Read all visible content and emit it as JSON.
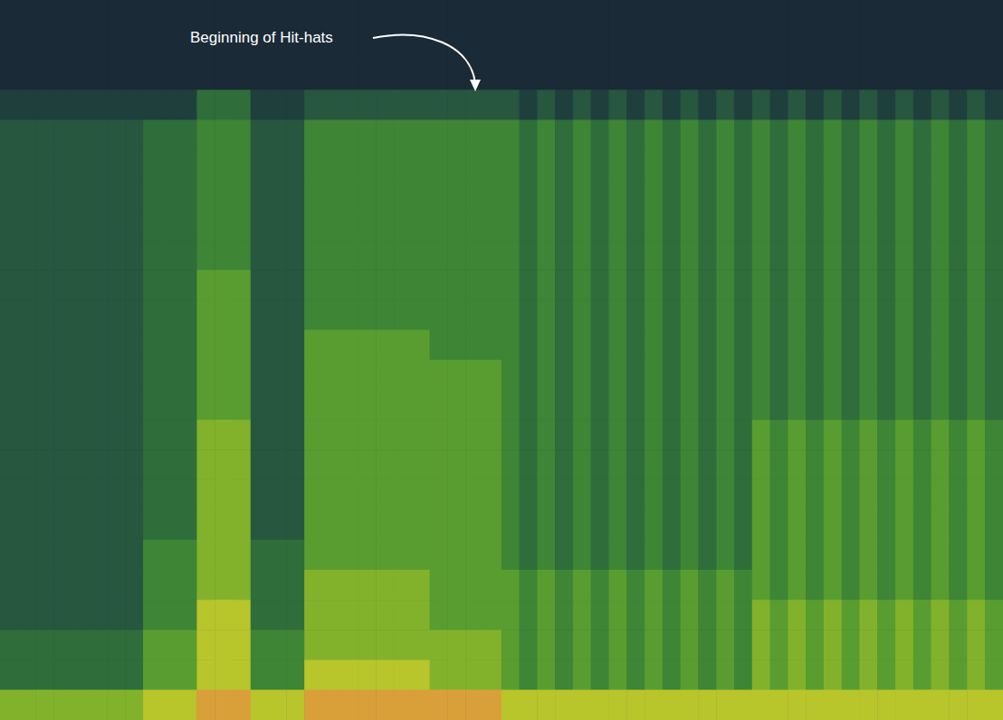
{
  "chart_data": {
    "type": "heatmap",
    "annotation": "Beginning of Hit-hats",
    "tick_labels": false,
    "grid": false,
    "color_range": [
      0,
      9
    ],
    "cells": [
      [
        0,
        0,
        0,
        0,
        0,
        0,
        0,
        0,
        0,
        0,
        0,
        0,
        0,
        0,
        0,
        0,
        0,
        0,
        0,
        0,
        0,
        0,
        0,
        0,
        0,
        0,
        0,
        0,
        0,
        0,
        0,
        0,
        0,
        0,
        0,
        0,
        0,
        0,
        0,
        0,
        0,
        0,
        0,
        0,
        0,
        0,
        0,
        0,
        0,
        0,
        0,
        0,
        0,
        0,
        0,
        0
      ],
      [
        0,
        0,
        0,
        0,
        0,
        0,
        0,
        0,
        0,
        0,
        0,
        0,
        0,
        0,
        0,
        0,
        0,
        0,
        0,
        0,
        0,
        0,
        0,
        0,
        0,
        0,
        0,
        0,
        0,
        0,
        0,
        0,
        0,
        0,
        0,
        0,
        0,
        0,
        0,
        0,
        0,
        0,
        0,
        0,
        0,
        0,
        0,
        0,
        0,
        0,
        0,
        0,
        0,
        0,
        0,
        0
      ],
      [
        0,
        0,
        0,
        0,
        0,
        0,
        0,
        0,
        0,
        0,
        0,
        0,
        0,
        0,
        0,
        0,
        0,
        0,
        0,
        0,
        0,
        0,
        0,
        0,
        0,
        0,
        0,
        0,
        0,
        0,
        0,
        0,
        0,
        0,
        0,
        0,
        0,
        0,
        0,
        0,
        0,
        0,
        0,
        0,
        0,
        0,
        0,
        0,
        0,
        0,
        0,
        0,
        0,
        0,
        0,
        0
      ],
      [
        1,
        1,
        1,
        1,
        1,
        1,
        1,
        1,
        1,
        1,
        1,
        3,
        3,
        3,
        1,
        1,
        1,
        2,
        2,
        2,
        2,
        2,
        2,
        2,
        2,
        2,
        2,
        2,
        2,
        1,
        2,
        1,
        2,
        1,
        2,
        1,
        2,
        1,
        2,
        1,
        2,
        1,
        2,
        1,
        2,
        1,
        2,
        1,
        2,
        1,
        2,
        1,
        2,
        1,
        2,
        1
      ],
      [
        2,
        2,
        2,
        2,
        2,
        2,
        2,
        2,
        3,
        3,
        3,
        4,
        4,
        4,
        2,
        2,
        2,
        4,
        4,
        4,
        4,
        4,
        4,
        4,
        4,
        4,
        4,
        4,
        4,
        3,
        4,
        3,
        4,
        3,
        4,
        3,
        4,
        3,
        4,
        3,
        4,
        3,
        4,
        3,
        4,
        3,
        4,
        3,
        4,
        3,
        4,
        3,
        4,
        3,
        4,
        3
      ],
      [
        2,
        2,
        2,
        2,
        2,
        2,
        2,
        2,
        3,
        3,
        3,
        4,
        4,
        4,
        2,
        2,
        2,
        4,
        4,
        4,
        4,
        4,
        4,
        4,
        4,
        4,
        4,
        4,
        4,
        3,
        4,
        3,
        4,
        3,
        4,
        3,
        4,
        3,
        4,
        3,
        4,
        3,
        4,
        3,
        4,
        3,
        4,
        3,
        4,
        3,
        4,
        3,
        4,
        3,
        4,
        3
      ],
      [
        2,
        2,
        2,
        2,
        2,
        2,
        2,
        2,
        3,
        3,
        3,
        4,
        4,
        4,
        2,
        2,
        2,
        4,
        4,
        4,
        4,
        4,
        4,
        4,
        4,
        4,
        4,
        4,
        4,
        3,
        4,
        3,
        4,
        3,
        4,
        3,
        4,
        3,
        4,
        3,
        4,
        3,
        4,
        3,
        4,
        3,
        4,
        3,
        4,
        3,
        4,
        3,
        4,
        3,
        4,
        3
      ],
      [
        2,
        2,
        2,
        2,
        2,
        2,
        2,
        2,
        3,
        3,
        3,
        4,
        4,
        4,
        2,
        2,
        2,
        4,
        4,
        4,
        4,
        4,
        4,
        4,
        4,
        4,
        4,
        4,
        4,
        3,
        4,
        3,
        4,
        3,
        4,
        3,
        4,
        3,
        4,
        3,
        4,
        3,
        4,
        3,
        4,
        3,
        4,
        3,
        4,
        3,
        4,
        3,
        4,
        3,
        4,
        3
      ],
      [
        2,
        2,
        2,
        2,
        2,
        2,
        2,
        2,
        3,
        3,
        3,
        4,
        4,
        4,
        2,
        2,
        2,
        4,
        4,
        4,
        4,
        4,
        4,
        4,
        4,
        4,
        4,
        4,
        4,
        3,
        4,
        3,
        4,
        3,
        4,
        3,
        4,
        3,
        4,
        3,
        4,
        3,
        4,
        3,
        4,
        3,
        4,
        3,
        4,
        3,
        4,
        3,
        4,
        3,
        4,
        3
      ],
      [
        2,
        2,
        2,
        2,
        2,
        2,
        2,
        2,
        3,
        3,
        3,
        5,
        5,
        5,
        2,
        2,
        2,
        4,
        4,
        4,
        4,
        4,
        4,
        4,
        4,
        4,
        4,
        4,
        4,
        3,
        4,
        3,
        4,
        3,
        4,
        3,
        4,
        3,
        4,
        3,
        4,
        3,
        4,
        3,
        4,
        3,
        4,
        3,
        4,
        3,
        4,
        3,
        4,
        3,
        4,
        3
      ],
      [
        2,
        2,
        2,
        2,
        2,
        2,
        2,
        2,
        3,
        3,
        3,
        5,
        5,
        5,
        2,
        2,
        2,
        4,
        4,
        4,
        4,
        4,
        4,
        4,
        4,
        4,
        4,
        4,
        4,
        3,
        4,
        3,
        4,
        3,
        4,
        3,
        4,
        3,
        4,
        3,
        4,
        3,
        4,
        3,
        4,
        3,
        4,
        3,
        4,
        3,
        4,
        3,
        4,
        3,
        4,
        3
      ],
      [
        2,
        2,
        2,
        2,
        2,
        2,
        2,
        2,
        3,
        3,
        3,
        5,
        5,
        5,
        2,
        2,
        2,
        5,
        5,
        5,
        5,
        5,
        5,
        5,
        4,
        4,
        4,
        4,
        4,
        3,
        4,
        3,
        4,
        3,
        4,
        3,
        4,
        3,
        4,
        3,
        4,
        3,
        4,
        3,
        4,
        3,
        4,
        3,
        4,
        3,
        4,
        3,
        4,
        3,
        4,
        3
      ],
      [
        2,
        2,
        2,
        2,
        2,
        2,
        2,
        2,
        3,
        3,
        3,
        5,
        5,
        5,
        2,
        2,
        2,
        5,
        5,
        5,
        5,
        5,
        5,
        5,
        5,
        5,
        5,
        5,
        4,
        3,
        4,
        3,
        4,
        3,
        4,
        3,
        4,
        3,
        4,
        3,
        4,
        3,
        4,
        3,
        4,
        3,
        4,
        3,
        4,
        3,
        4,
        3,
        4,
        3,
        4,
        3
      ],
      [
        2,
        2,
        2,
        2,
        2,
        2,
        2,
        2,
        3,
        3,
        3,
        5,
        5,
        5,
        2,
        2,
        2,
        5,
        5,
        5,
        5,
        5,
        5,
        5,
        5,
        5,
        5,
        5,
        4,
        3,
        4,
        3,
        4,
        3,
        4,
        3,
        4,
        3,
        4,
        3,
        4,
        3,
        4,
        3,
        4,
        3,
        4,
        3,
        4,
        3,
        4,
        3,
        4,
        3,
        4,
        3
      ],
      [
        2,
        2,
        2,
        2,
        2,
        2,
        2,
        2,
        3,
        3,
        3,
        6,
        6,
        6,
        2,
        2,
        2,
        5,
        5,
        5,
        5,
        5,
        5,
        5,
        5,
        5,
        5,
        5,
        4,
        3,
        4,
        3,
        4,
        3,
        4,
        3,
        4,
        3,
        4,
        3,
        4,
        3,
        5,
        4,
        5,
        4,
        5,
        4,
        5,
        4,
        5,
        4,
        5,
        4,
        5,
        4
      ],
      [
        2,
        2,
        2,
        2,
        2,
        2,
        2,
        2,
        3,
        3,
        3,
        6,
        6,
        6,
        2,
        2,
        2,
        5,
        5,
        5,
        5,
        5,
        5,
        5,
        5,
        5,
        5,
        5,
        4,
        3,
        4,
        3,
        4,
        3,
        4,
        3,
        4,
        3,
        4,
        3,
        4,
        3,
        5,
        4,
        5,
        4,
        5,
        4,
        5,
        4,
        5,
        4,
        5,
        4,
        5,
        4
      ],
      [
        2,
        2,
        2,
        2,
        2,
        2,
        2,
        2,
        3,
        3,
        3,
        6,
        6,
        6,
        2,
        2,
        2,
        5,
        5,
        5,
        5,
        5,
        5,
        5,
        5,
        5,
        5,
        5,
        4,
        3,
        4,
        3,
        4,
        3,
        4,
        3,
        4,
        3,
        4,
        3,
        4,
        3,
        5,
        4,
        5,
        4,
        5,
        4,
        5,
        4,
        5,
        4,
        5,
        4,
        5,
        4
      ],
      [
        2,
        2,
        2,
        2,
        2,
        2,
        2,
        2,
        3,
        3,
        3,
        6,
        6,
        6,
        2,
        2,
        2,
        5,
        5,
        5,
        5,
        5,
        5,
        5,
        5,
        5,
        5,
        5,
        4,
        3,
        4,
        3,
        4,
        3,
        4,
        3,
        4,
        3,
        4,
        3,
        4,
        3,
        5,
        4,
        5,
        4,
        5,
        4,
        5,
        4,
        5,
        4,
        5,
        4,
        5,
        4
      ],
      [
        2,
        2,
        2,
        2,
        2,
        2,
        2,
        2,
        4,
        4,
        4,
        6,
        6,
        6,
        3,
        3,
        3,
        5,
        5,
        5,
        5,
        5,
        5,
        5,
        5,
        5,
        5,
        5,
        4,
        3,
        4,
        3,
        4,
        3,
        4,
        3,
        4,
        3,
        4,
        3,
        4,
        3,
        5,
        4,
        5,
        4,
        5,
        4,
        5,
        4,
        5,
        4,
        5,
        4,
        5,
        4
      ],
      [
        2,
        2,
        2,
        2,
        2,
        2,
        2,
        2,
        4,
        4,
        4,
        6,
        6,
        6,
        3,
        3,
        3,
        6,
        6,
        6,
        6,
        6,
        6,
        6,
        5,
        5,
        5,
        5,
        5,
        4,
        5,
        4,
        5,
        4,
        5,
        4,
        5,
        4,
        5,
        4,
        5,
        4,
        5,
        4,
        5,
        4,
        5,
        4,
        5,
        4,
        5,
        4,
        5,
        4,
        5,
        4
      ],
      [
        2,
        2,
        2,
        2,
        2,
        2,
        2,
        2,
        4,
        4,
        4,
        7,
        7,
        7,
        3,
        3,
        3,
        6,
        6,
        6,
        6,
        6,
        6,
        6,
        5,
        5,
        5,
        5,
        5,
        4,
        5,
        4,
        5,
        4,
        5,
        4,
        5,
        4,
        5,
        4,
        5,
        4,
        6,
        5,
        6,
        5,
        6,
        5,
        6,
        5,
        6,
        5,
        6,
        5,
        6,
        5
      ],
      [
        3,
        3,
        3,
        3,
        3,
        3,
        3,
        3,
        5,
        5,
        5,
        7,
        7,
        7,
        4,
        4,
        4,
        6,
        6,
        6,
        6,
        6,
        6,
        6,
        6,
        6,
        6,
        6,
        5,
        4,
        5,
        4,
        5,
        4,
        5,
        4,
        5,
        4,
        5,
        4,
        5,
        4,
        6,
        5,
        6,
        5,
        6,
        5,
        6,
        5,
        6,
        5,
        6,
        5,
        6,
        5
      ],
      [
        3,
        3,
        3,
        3,
        3,
        3,
        3,
        3,
        5,
        5,
        5,
        7,
        7,
        7,
        4,
        4,
        4,
        7,
        7,
        7,
        7,
        7,
        7,
        7,
        6,
        6,
        6,
        6,
        5,
        4,
        5,
        4,
        5,
        4,
        5,
        4,
        5,
        4,
        5,
        4,
        5,
        4,
        6,
        5,
        6,
        5,
        6,
        5,
        6,
        5,
        6,
        5,
        6,
        5,
        6,
        5
      ],
      [
        6,
        6,
        6,
        6,
        6,
        6,
        6,
        6,
        7,
        7,
        7,
        8,
        8,
        8,
        7,
        7,
        7,
        8,
        8,
        8,
        8,
        8,
        8,
        8,
        8,
        8,
        8,
        8,
        7,
        7,
        7,
        7,
        7,
        7,
        7,
        7,
        7,
        7,
        7,
        7,
        7,
        7,
        7,
        7,
        7,
        7,
        7,
        7,
        7,
        7,
        7,
        7,
        7,
        7,
        7,
        7
      ]
    ]
  }
}
